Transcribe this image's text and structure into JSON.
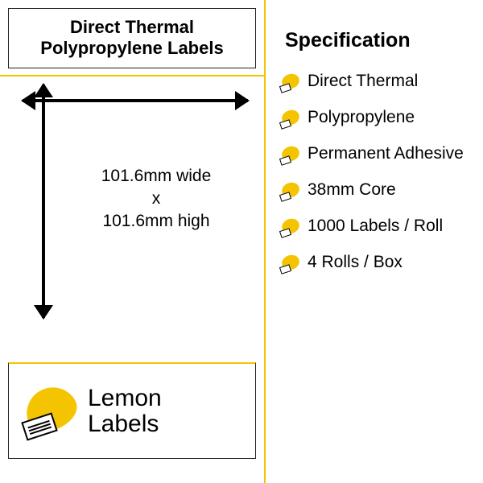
{
  "left": {
    "title": "Direct Thermal Polypropylene Labels",
    "dimensions": {
      "width_text": "101.6mm wide",
      "separator": "x",
      "height_text": "101.6mm high"
    },
    "logo": {
      "line1": "Lemon",
      "line2": "Labels"
    }
  },
  "spec": {
    "title": "Specification",
    "items": [
      {
        "text": "Direct Thermal"
      },
      {
        "text": "Polypropylene"
      },
      {
        "text": "Permanent Adhesive"
      },
      {
        "text": "38mm Core"
      },
      {
        "text": "1000 Labels / Roll"
      },
      {
        "text": "4 Rolls / Box"
      }
    ]
  },
  "colors": {
    "accent": "#f5c400",
    "text": "#000000",
    "bg": "#ffffff"
  }
}
